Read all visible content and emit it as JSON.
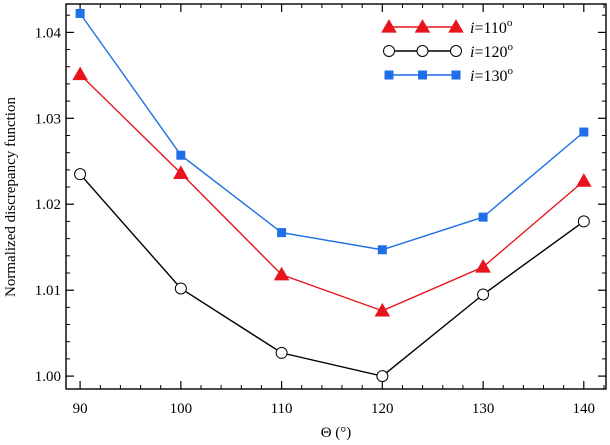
{
  "chart_data": {
    "type": "line",
    "title": "",
    "xlabel": "Θ (°)",
    "ylabel": "Normalized discrepancy function",
    "x": [
      90,
      100,
      110,
      120,
      130,
      140
    ],
    "xlim": [
      88.6,
      142.2
    ],
    "ylim": [
      0.9985,
      1.0433
    ],
    "xticks": [
      90,
      100,
      110,
      120,
      130,
      140
    ],
    "yticks": [
      1.0,
      1.01,
      1.02,
      1.03,
      1.04
    ],
    "ytick_labels": [
      "1.00",
      "1.01",
      "1.02",
      "1.03",
      "1.04"
    ],
    "grid": false,
    "legend_position": "top-right",
    "series": [
      {
        "name": "i=110°",
        "legend_var": "i",
        "legend_value": "=110",
        "legend_sup": "o",
        "color": "#e8141c",
        "marker": "triangle",
        "values": [
          1.0351,
          1.0236,
          1.0118,
          1.0076,
          1.0127,
          1.0227
        ]
      },
      {
        "name": "i=120°",
        "legend_var": "i",
        "legend_value": "=120",
        "legend_sup": "o",
        "color": "#000000",
        "marker": "circle-open",
        "values": [
          1.0235,
          1.0102,
          1.0027,
          1.0,
          1.0095,
          1.018
        ]
      },
      {
        "name": "i=130°",
        "legend_var": "i",
        "legend_value": "=130",
        "legend_sup": "o",
        "color": "#1f6fe6",
        "marker": "square",
        "values": [
          1.0422,
          1.0257,
          1.0167,
          1.0147,
          1.0185,
          1.0284
        ]
      }
    ]
  }
}
